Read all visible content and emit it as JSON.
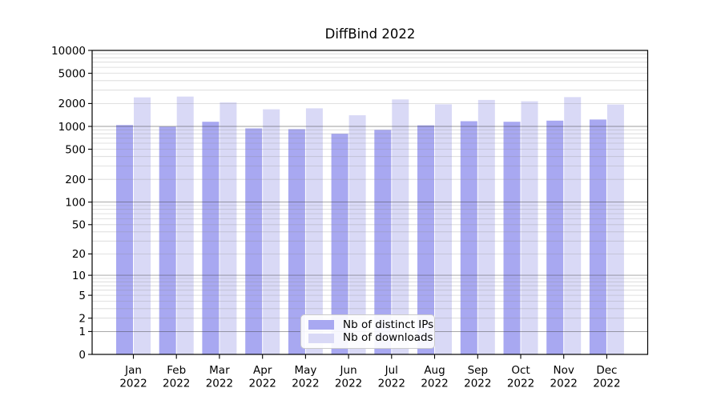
{
  "chart_data": {
    "type": "bar",
    "title": "DiffBind 2022",
    "categories": [
      "Jan",
      "Feb",
      "Mar",
      "Apr",
      "May",
      "Jun",
      "Jul",
      "Aug",
      "Sep",
      "Oct",
      "Nov",
      "Dec"
    ],
    "year_label": "2022",
    "series": [
      {
        "name": "Nb of distinct IPs",
        "color": "#a8a8f1",
        "values": [
          1040,
          990,
          1150,
          940,
          920,
          800,
          900,
          1030,
          1170,
          1150,
          1190,
          1230
        ]
      },
      {
        "name": "Nb of downloads",
        "color": "#d9d9f6",
        "values": [
          2410,
          2470,
          2070,
          1680,
          1730,
          1400,
          2260,
          1950,
          2230,
          2140,
          2430,
          1940
        ]
      }
    ],
    "y_axis": {
      "scale": "log10(value+1)",
      "range": [
        0,
        10000
      ],
      "ticks": [
        0,
        1,
        2,
        5,
        10,
        20,
        50,
        100,
        200,
        500,
        1000,
        2000,
        5000,
        10000
      ]
    },
    "x_axis": {
      "tick_labels_line1": [
        "Jan",
        "Feb",
        "Mar",
        "Apr",
        "May",
        "Jun",
        "Jul",
        "Aug",
        "Sep",
        "Oct",
        "Nov",
        "Dec"
      ],
      "tick_labels_line2": [
        "2022",
        "2022",
        "2022",
        "2022",
        "2022",
        "2022",
        "2022",
        "2022",
        "2022",
        "2022",
        "2022",
        "2022"
      ]
    },
    "legend": {
      "position": "inside-bottom-center",
      "entries": [
        "Nb of distinct IPs",
        "Nb of downloads"
      ]
    },
    "grid": {
      "minor_color_on_white": "#dcdcdc",
      "major_color_on_white": "#9b9b9b"
    }
  },
  "colors": {
    "background": "#ffffff",
    "axis": "#000000",
    "text": "#000000"
  }
}
